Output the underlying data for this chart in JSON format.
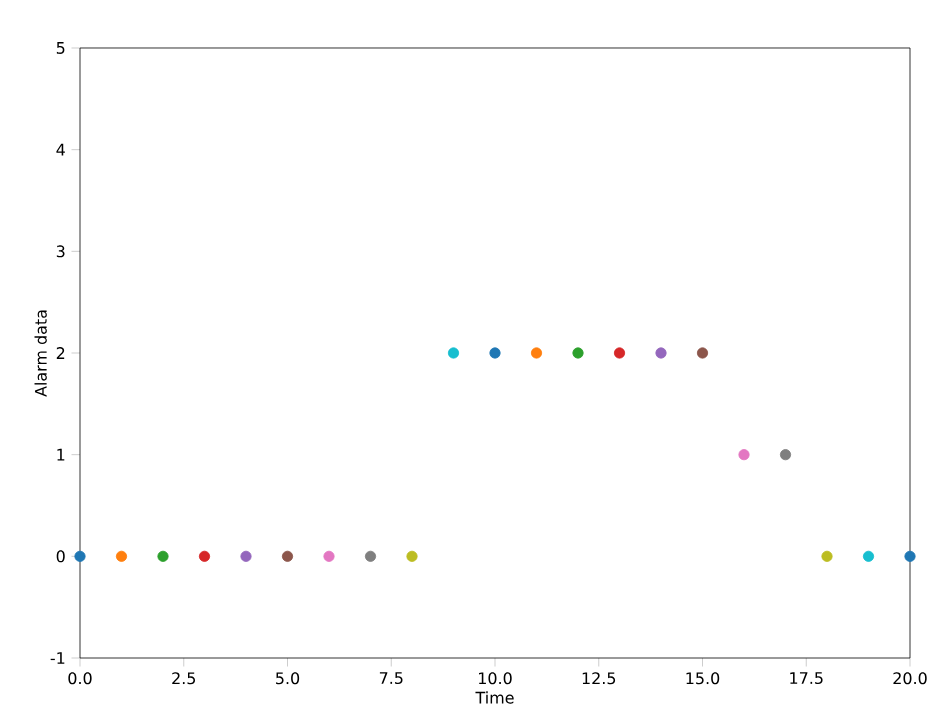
{
  "chart_data": {
    "type": "scatter",
    "xlabel": "Time",
    "ylabel": "Alarm data",
    "x": [
      0,
      1,
      2,
      3,
      4,
      5,
      6,
      7,
      8,
      9,
      10,
      11,
      12,
      13,
      14,
      15,
      16,
      17,
      18,
      19,
      20
    ],
    "values": [
      0,
      0,
      0,
      0,
      0,
      0,
      0,
      0,
      0,
      2,
      2,
      2,
      2,
      2,
      2,
      2,
      1,
      1,
      0,
      0,
      0
    ],
    "colors": [
      "#1f77b4",
      "#ff7f0e",
      "#2ca02c",
      "#d62728",
      "#9467bd",
      "#8c564b",
      "#e377c2",
      "#7f7f7f",
      "#bcbd22",
      "#17becf",
      "#1f77b4",
      "#ff7f0e",
      "#2ca02c",
      "#d62728",
      "#9467bd",
      "#8c564b",
      "#e377c2",
      "#7f7f7f",
      "#bcbd22",
      "#17becf",
      "#1f77b4"
    ],
    "xlim": [
      0,
      20
    ],
    "ylim": [
      -1,
      5
    ],
    "xticks": [
      {
        "value": 0,
        "label": "0.0"
      },
      {
        "value": 2.5,
        "label": "2.5"
      },
      {
        "value": 5,
        "label": "5.0"
      },
      {
        "value": 7.5,
        "label": "7.5"
      },
      {
        "value": 10,
        "label": "10.0"
      },
      {
        "value": 12.5,
        "label": "12.5"
      },
      {
        "value": 15,
        "label": "15.0"
      },
      {
        "value": 17.5,
        "label": "17.5"
      },
      {
        "value": 20,
        "label": "20.0"
      }
    ],
    "yticks": [
      -1,
      0,
      1,
      2,
      3,
      4,
      5
    ],
    "marker": "circle",
    "grid": false
  }
}
